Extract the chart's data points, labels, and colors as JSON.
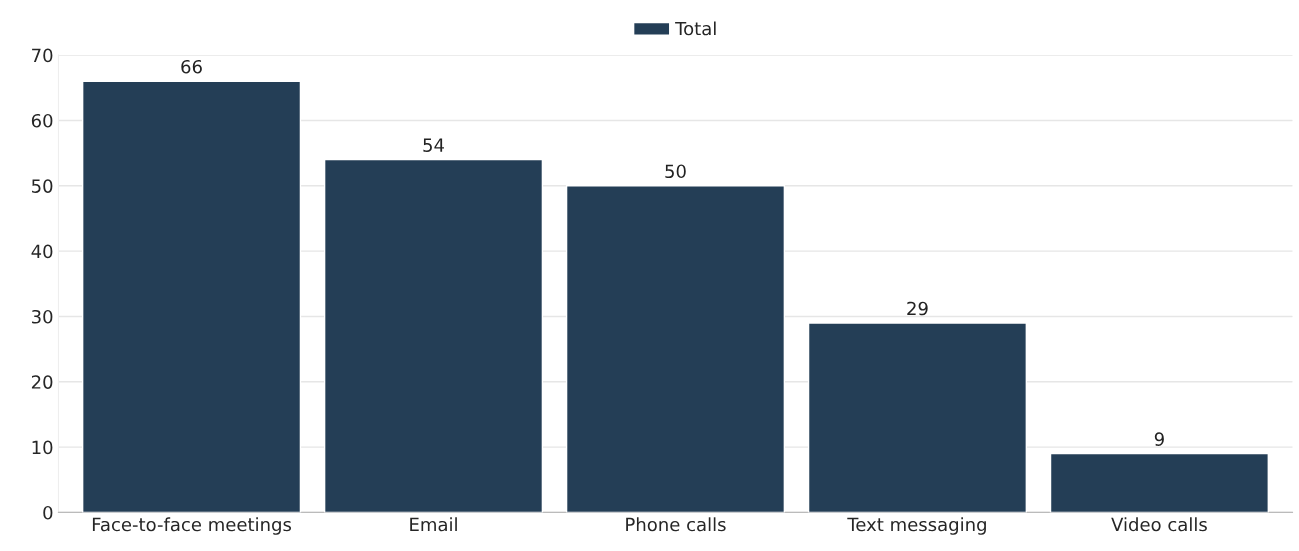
{
  "chart_data": {
    "type": "bar",
    "categories": [
      "Face-to-face meetings",
      "Email",
      "Phone calls",
      "Text messaging",
      "Video calls"
    ],
    "series": [
      {
        "name": "Total",
        "color": "#243e56",
        "values": [
          66,
          54,
          50,
          29,
          9
        ]
      }
    ],
    "ylim": [
      0,
      70
    ],
    "yticks": [
      0,
      10,
      20,
      30,
      40,
      50,
      60,
      70
    ],
    "grid": "y",
    "legend": "top",
    "data_labels": true
  }
}
